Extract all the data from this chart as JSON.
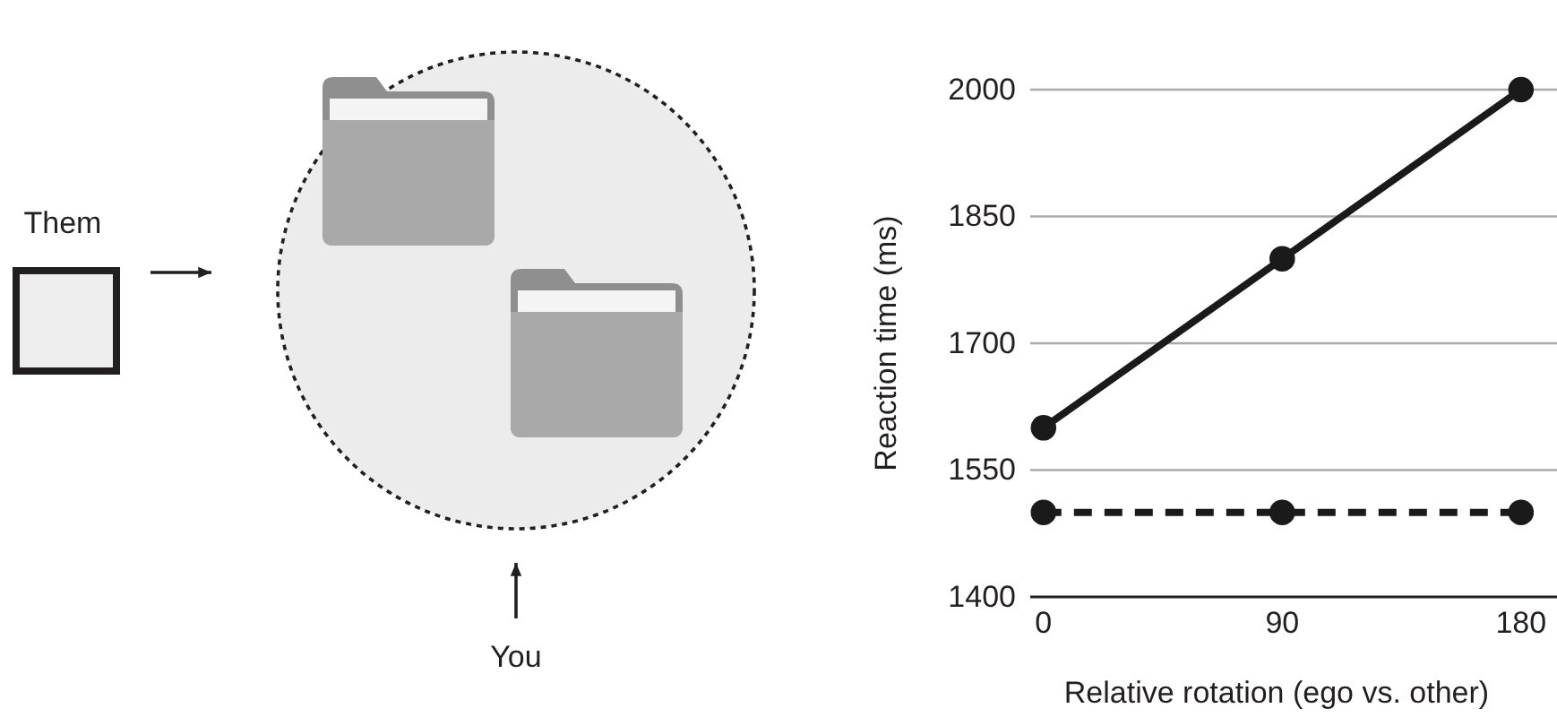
{
  "chart_data": {
    "type": "line",
    "xlabel": "Relative rotation (ego vs. other)",
    "ylabel": "Reaction time (ms)",
    "x": [
      0,
      90,
      180
    ],
    "series": [
      {
        "color": "#1a1a1a",
        "values": [
          1600,
          1800,
          2000
        ],
        "line_style": "solid"
      },
      {
        "color": "#1a1a1a",
        "values": [
          1500,
          1500,
          1500
        ],
        "line_style": "dashed"
      }
    ],
    "xlim": [
      -5,
      201
    ],
    "ylim": [
      1400,
      2000
    ],
    "xticks": [
      0,
      90,
      180
    ],
    "yticks": [
      1400,
      1550,
      1700,
      1850,
      2000
    ],
    "grid": "y",
    "marker": "circle",
    "annotations": [
      "Them",
      "You"
    ]
  }
}
